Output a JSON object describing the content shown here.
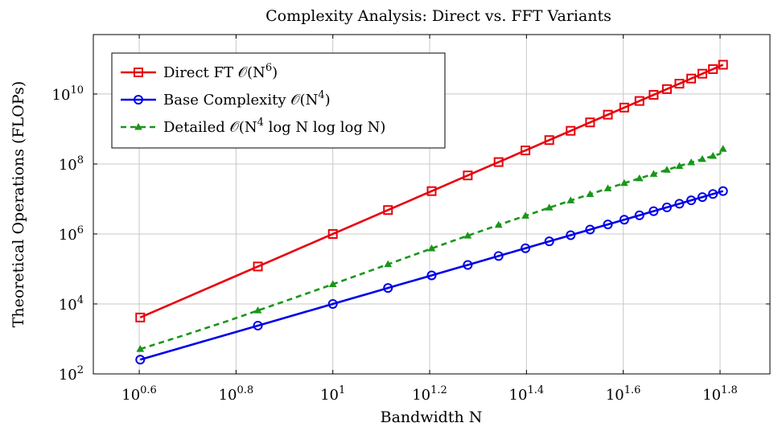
{
  "chart_data": {
    "type": "line",
    "title": "Complexity Analysis: Direct vs. FFT Variants",
    "xlabel": "Bandwidth N",
    "ylabel": "Theoretical Operations (FLOPs)",
    "xscale": "log",
    "yscale": "log",
    "xlim": [
      3.2,
      80
    ],
    "ylim": [
      100,
      500000000000
    ],
    "grid": true,
    "legend_position": "top-left",
    "x_ticks": [
      {
        "value": 3.981,
        "base": "10",
        "exp": "0.6"
      },
      {
        "value": 6.31,
        "base": "10",
        "exp": "0.8"
      },
      {
        "value": 10,
        "base": "10",
        "exp": "1"
      },
      {
        "value": 15.85,
        "base": "10",
        "exp": "1.2"
      },
      {
        "value": 25.12,
        "base": "10",
        "exp": "1.4"
      },
      {
        "value": 39.81,
        "base": "10",
        "exp": "1.6"
      },
      {
        "value": 63.1,
        "base": "10",
        "exp": "1.8"
      }
    ],
    "y_ticks": [
      {
        "value": 100,
        "base": "10",
        "exp": "2"
      },
      {
        "value": 10000,
        "base": "10",
        "exp": "4"
      },
      {
        "value": 1000000,
        "base": "10",
        "exp": "6"
      },
      {
        "value": 100000000,
        "base": "10",
        "exp": "8"
      },
      {
        "value": 10000000000,
        "base": "10",
        "exp": "10"
      }
    ],
    "x": [
      4,
      5,
      6,
      7,
      8,
      9,
      10,
      11,
      12,
      13,
      14,
      15,
      16,
      17,
      18,
      19,
      20,
      21,
      22,
      23,
      24,
      25,
      26,
      27,
      28,
      29,
      30,
      31,
      32,
      33,
      34,
      35,
      36,
      37,
      38,
      39,
      40,
      41,
      42,
      43,
      44,
      45,
      46,
      47,
      48,
      49,
      50,
      51,
      52,
      53,
      54,
      55,
      56,
      57,
      58,
      59,
      60,
      61,
      62,
      63,
      64
    ],
    "series": [
      {
        "name": "Direct FT O(N^6)",
        "legend_prefix": "Direct FT ",
        "legend_math": "𝒪(N",
        "legend_sup": "6",
        "legend_suffix": ")",
        "color": "#e8000b",
        "marker": "square",
        "dash": "solid",
        "values": [
          4096,
          15625,
          46656,
          117649,
          262144,
          531441,
          1000000,
          1771561,
          2985984,
          4826809,
          7529536,
          11390625,
          16777216,
          24137569,
          34012224,
          47045881,
          64000000,
          85766121,
          113379904,
          148035889,
          191102976,
          244140625,
          308915776,
          387420489,
          481890304,
          594823321,
          729000000,
          887503681,
          1073741824,
          1291467969,
          1544804416,
          1838265625,
          2176782336,
          2565726409,
          3010936384,
          3518743761,
          4096000000,
          4750104241,
          5489031744,
          6321363049,
          7256313856,
          8303765625,
          9474296896,
          10779215329,
          12230590464,
          13841287201,
          15625000000,
          17596287801,
          19770609664,
          22164361129,
          24794911296,
          27680640625,
          30840979456,
          34296447249,
          38068692544,
          42180533641,
          46656000000,
          51520374361,
          56800235584,
          62523502209,
          68719476736
        ]
      },
      {
        "name": "Base Complexity O(N^4)",
        "legend_prefix": "Base Complexity ",
        "legend_math": "𝒪(N",
        "legend_sup": "4",
        "legend_suffix": ")",
        "color": "#0000e8",
        "marker": "circle",
        "dash": "solid",
        "values": [
          256,
          625,
          1296,
          2401,
          4096,
          6561,
          10000,
          14641,
          20736,
          28561,
          38416,
          50625,
          65536,
          83521,
          104976,
          130321,
          160000,
          194481,
          234256,
          279841,
          331776,
          390625,
          456976,
          531441,
          614656,
          707281,
          810000,
          923521,
          1048576,
          1185921,
          1336336,
          1500625,
          1679616,
          1874161,
          2085136,
          2313441,
          2560000,
          2825761,
          3111696,
          3418801,
          3748096,
          4100625,
          4477456,
          4879681,
          5308416,
          5764801,
          6250000,
          6765201,
          7311616,
          7890481,
          8503056,
          9150625,
          9834496,
          10556001,
          11316496,
          12117361,
          12960000,
          13845841,
          14776336,
          15752961,
          16777216
        ]
      },
      {
        "name": "Detailed O(N^4 log N log log N)",
        "legend_prefix": "Detailed ",
        "legend_math": "𝒪(N",
        "legend_sup": "4",
        "legend_suffix": " log N log log N)",
        "color": "#1a961a",
        "marker": "triangle",
        "dash": "dashed",
        "values": [
          512,
          1357,
          3110,
          6479,
          12288,
          21747,
          36582,
          58847,
          90800,
          136001,
          197335,
          278041,
          384562,
          518905,
          686733,
          891929,
          1142720,
          1445108,
          1806149,
          2231936,
          2731437,
          3312893,
          3984800,
          4754790,
          5634010,
          6629616,
          7753122,
          9013155,
          10420457,
          11985907,
          13719521,
          15632447,
          17735968,
          20041494,
          22560569,
          25305876,
          28289239,
          31522620,
          35018140,
          38789071,
          42847846,
          47208057,
          51883462,
          56887987,
          62235736,
          67940980,
          74018175,
          80481957,
          87347144,
          94628745,
          102341974,
          110502241,
          119125161,
          128226551,
          137822443,
          147929076,
          158562900,
          169740569,
          181478948,
          193795112,
          268435456
        ]
      }
    ]
  }
}
